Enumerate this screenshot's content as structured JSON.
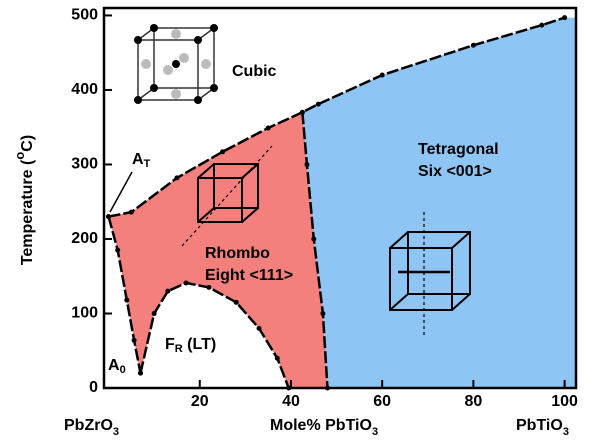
{
  "chart_data": {
    "type": "phase",
    "y_label": {
      "before": "Temperature (",
      "sup": "o",
      "after": "C)"
    },
    "x_label": {
      "main": "Mole% PbTiO",
      "sub": "3"
    },
    "x_left_label": {
      "main": "PbZrO",
      "sub": "3"
    },
    "x_right_label": {
      "main": "PbTiO",
      "sub": "3"
    },
    "xlim": [
      -1,
      102.5
    ],
    "xticks": [
      20,
      40,
      60,
      80,
      100
    ],
    "ylim": [
      0,
      510
    ],
    "yticks": [
      0,
      100,
      200,
      300,
      400,
      500
    ],
    "line_color": "#000000",
    "region_colors": {
      "rhombohedral": "#f3807c",
      "tetragonal": "#8fc5f4",
      "cubic": "#ffffff"
    },
    "boundaries": {
      "curie": {
        "x": [
          0,
          5,
          15,
          25,
          35,
          42.5,
          46,
          60,
          80,
          95,
          100
        ],
        "y": [
          230,
          236,
          282,
          317,
          349,
          370,
          381,
          420,
          460,
          487,
          497
        ]
      },
      "mpb": {
        "x": [
          42.5,
          43.5,
          45,
          47,
          48
        ],
        "y": [
          370,
          300,
          200,
          100,
          0
        ]
      },
      "rhombo_left": {
        "x": [
          0,
          2,
          4,
          5.6,
          7
        ],
        "y": [
          230,
          185,
          118,
          64,
          20
        ]
      },
      "low_temp": {
        "x": [
          7,
          10,
          13,
          17,
          22,
          28,
          33,
          37,
          39.5
        ],
        "y": [
          20,
          100,
          130,
          141,
          135,
          115,
          80,
          40,
          0
        ]
      }
    },
    "labels": {
      "cubic": "Cubic",
      "tetragonal": [
        "Tetragonal",
        "Six <001>"
      ],
      "rhombo": [
        "Rhombo",
        "Eight <111>"
      ],
      "fr": {
        "main": "F",
        "sub": "R",
        "after": " (LT)"
      },
      "at": {
        "main": "A",
        "sub": "T"
      },
      "a0": {
        "main": "A",
        "sub": "0"
      }
    }
  }
}
